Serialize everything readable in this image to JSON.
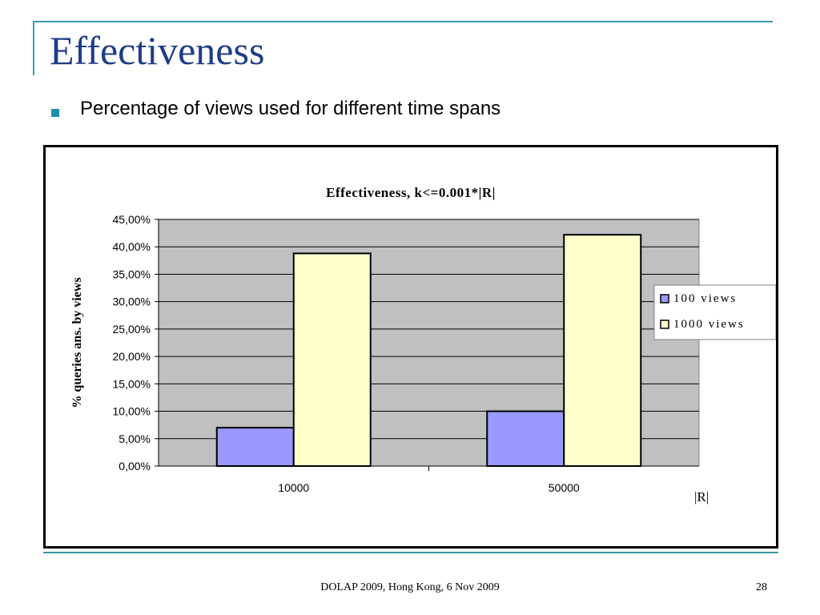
{
  "slide": {
    "title": "Effectiveness",
    "bullet": "Percentage of views used for different time spans",
    "footer": "DOLAP 2009, Hong Kong,  6 Nov 2009",
    "page_number": "28"
  },
  "chart_data": {
    "type": "bar",
    "title": "Effectiveness, k<=0.001*|R|",
    "xlabel": "|R|",
    "ylabel": "% queries ans. by views",
    "categories": [
      "10000",
      "50000"
    ],
    "series": [
      {
        "name": "100 views",
        "values": [
          0.07,
          0.1
        ],
        "color": "#9999ff"
      },
      {
        "name": "1000 views",
        "values": [
          0.388,
          0.422
        ],
        "color": "#ffffcc"
      }
    ],
    "ylim": [
      0,
      0.45
    ],
    "yticks": [
      "0,00%",
      "5,00%",
      "10,00%",
      "15,00%",
      "20,00%",
      "25,00%",
      "30,00%",
      "35,00%",
      "40,00%",
      "45,00%"
    ],
    "grid": true,
    "plot_background": "#c0c0c0",
    "legend": "right"
  }
}
